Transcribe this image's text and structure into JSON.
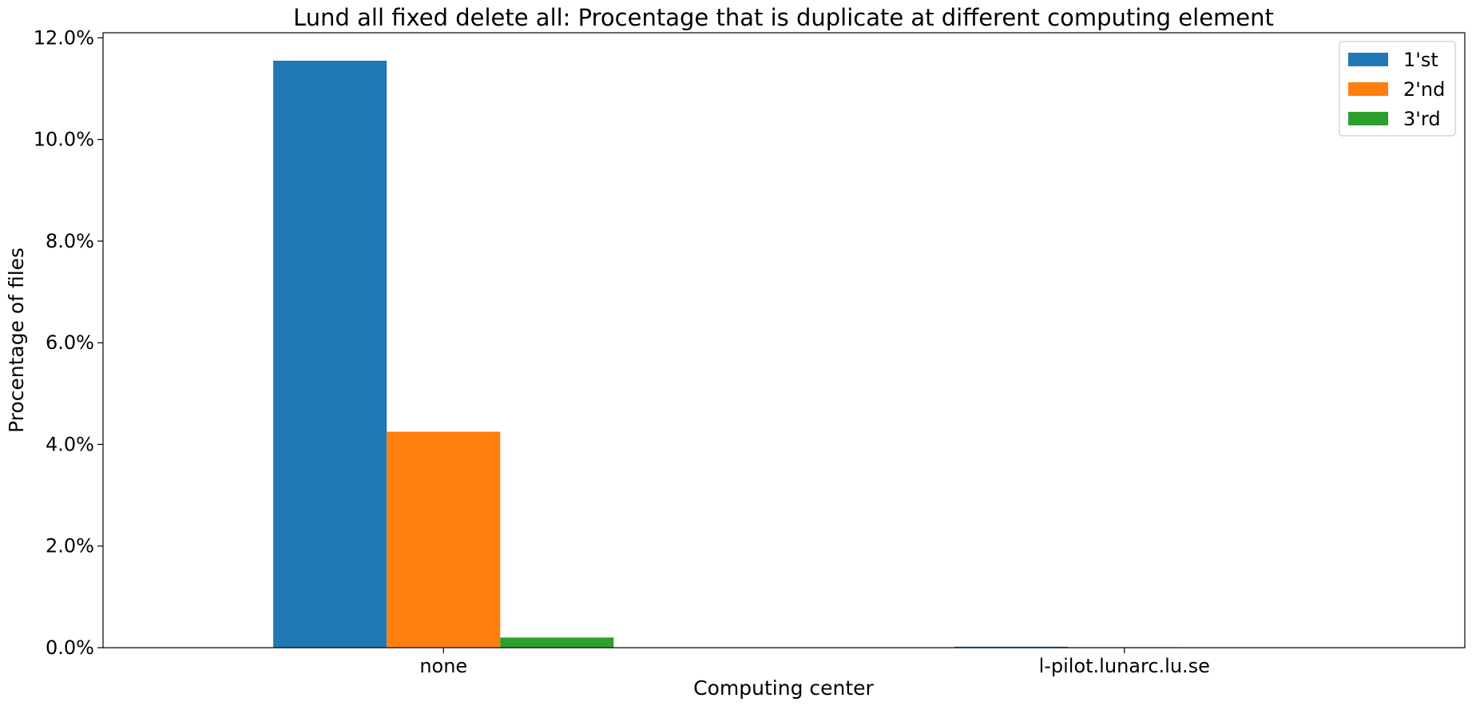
{
  "chart_data": {
    "type": "bar",
    "title": "Lund all fixed delete all: Procentage that is duplicate at different computing element",
    "xlabel": "Computing center",
    "ylabel": "Procentage of files",
    "categories": [
      "none",
      "l-pilot.lunarc.lu.se"
    ],
    "series": [
      {
        "name": "1'st",
        "color": "#1f77b4",
        "values": [
          11.55,
          0.02
        ]
      },
      {
        "name": "2'nd",
        "color": "#ff7f0e",
        "values": [
          4.25,
          0.01
        ]
      },
      {
        "name": "3'rd",
        "color": "#2ca02c",
        "values": [
          0.2,
          0.0
        ]
      }
    ],
    "ylim": [
      0,
      12.1
    ],
    "yticks": [
      0,
      2,
      4,
      6,
      8,
      10,
      12
    ],
    "ytick_labels": [
      "0.0%",
      "2.0%",
      "4.0%",
      "6.0%",
      "8.0%",
      "10.0%",
      "12.0%"
    ],
    "legend_position": "top-right",
    "grid": false
  }
}
